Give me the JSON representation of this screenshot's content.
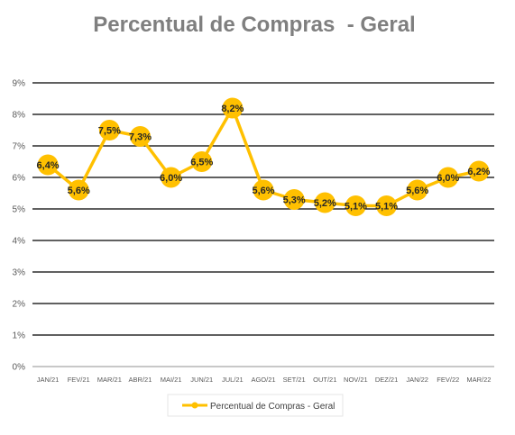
{
  "chart_data": {
    "type": "line",
    "title": "Percentual de Compras  - Geral",
    "categories": [
      "JAN/21",
      "FEV/21",
      "MAR/21",
      "ABR/21",
      "MAI/21",
      "JUN/21",
      "JUL/21",
      "AGO/21",
      "SET/21",
      "OUT/21",
      "NOV/21",
      "DEZ/21",
      "JAN/22",
      "FEV/22",
      "MAR/22"
    ],
    "series": [
      {
        "name": "Percentual de Compras - Geral",
        "values": [
          6.4,
          5.6,
          7.5,
          7.3,
          6.0,
          6.5,
          8.2,
          5.6,
          5.3,
          5.2,
          5.1,
          5.1,
          5.6,
          6.0,
          6.2
        ],
        "labels": [
          "6,4%",
          "5,6%",
          "7,5%",
          "7,3%",
          "6,0%",
          "6,5%",
          "8,2%",
          "5,6%",
          "5,3%",
          "5,2%",
          "5,1%",
          "5,1%",
          "5,6%",
          "6,0%",
          "6,2%"
        ],
        "color": "#FFC000"
      }
    ],
    "y_ticks": [
      "0%",
      "1%",
      "2%",
      "3%",
      "4%",
      "5%",
      "6%",
      "7%",
      "8%",
      "9%"
    ],
    "ylim": [
      0,
      9
    ],
    "grid": true,
    "legend_position": "bottom",
    "gridline_color": "#000000",
    "marker_color": "#FFC000"
  }
}
